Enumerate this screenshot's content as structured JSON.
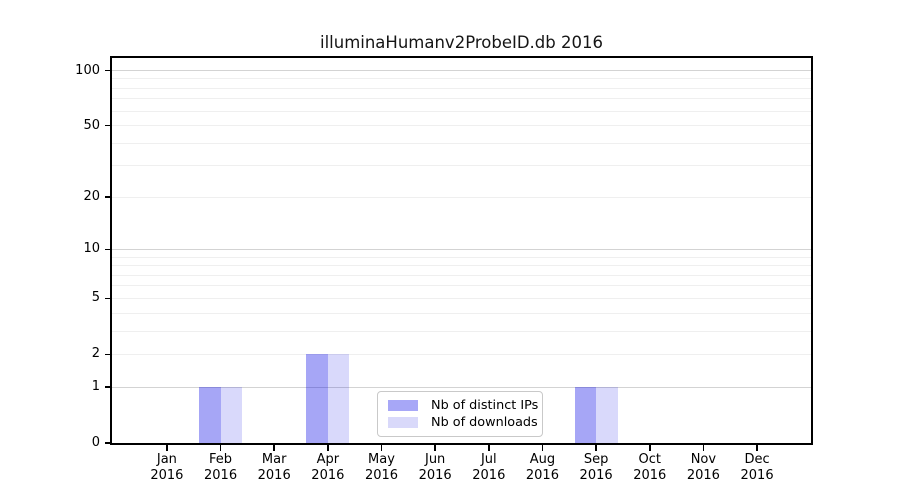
{
  "chart_data": {
    "type": "bar",
    "title": "illuminaHumanv2ProbeID.db 2016",
    "categories": [
      "Jan",
      "Feb",
      "Mar",
      "Apr",
      "May",
      "Jun",
      "Jul",
      "Aug",
      "Sep",
      "Oct",
      "Nov",
      "Dec"
    ],
    "category_year": "2016",
    "series": [
      {
        "name": "Nb of distinct IPs",
        "fill": "rgba(0,0,230,0.35)",
        "legend_color": "#a7a7f7",
        "values": [
          0,
          1,
          0,
          2,
          0,
          0,
          0,
          0,
          1,
          0,
          0,
          0
        ]
      },
      {
        "name": "Nb of downloads",
        "fill": "rgba(0,0,230,0.15)",
        "legend_color": "#d9d9fa",
        "values": [
          0,
          1,
          0,
          2,
          0,
          0,
          0,
          0,
          1,
          0,
          0,
          0
        ]
      }
    ],
    "yscale": "log1p",
    "ylim": [
      0,
      116
    ],
    "yticks": [
      0,
      1,
      2,
      5,
      10,
      20,
      50,
      100
    ],
    "major_grid": [
      1,
      10,
      100
    ],
    "minor_grid": [
      2,
      3,
      4,
      5,
      6,
      7,
      8,
      9,
      20,
      30,
      40,
      50,
      60,
      70,
      80,
      90
    ],
    "grid": true,
    "legend_position": "lower center",
    "xlabel": "",
    "ylabel": ""
  },
  "colors": {
    "background": "#ffffff",
    "spine": "#000000",
    "tick_label": "#000000",
    "major_grid": "#d3d3d3",
    "minor_grid": "#efefef",
    "legend_border": "#c9c9c9"
  }
}
